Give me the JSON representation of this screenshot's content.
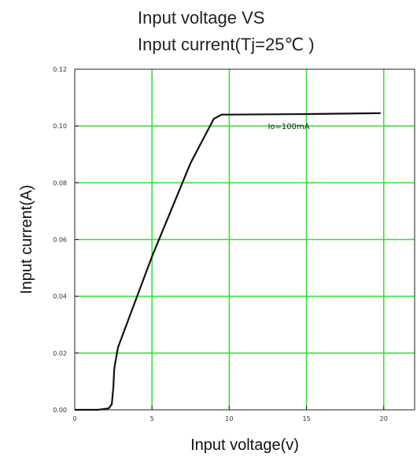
{
  "chart_data": {
    "type": "line",
    "title_line1": "Input voltage VS",
    "title_line2": "Input current(Tj=25℃ )",
    "xlabel": "Input voltage(v)",
    "ylabel": "Input current(A)",
    "xlim": [
      0,
      22
    ],
    "ylim": [
      0,
      0.12
    ],
    "x_ticks": [
      "0",
      "5",
      "10",
      "15",
      "20"
    ],
    "x_tick_values": [
      0,
      5,
      10,
      15,
      20
    ],
    "y_ticks": [
      "0.00",
      "0.02",
      "0.04",
      "0.06",
      "0.08",
      "0.10",
      "0.12"
    ],
    "y_tick_values": [
      0,
      0.02,
      0.04,
      0.06,
      0.08,
      0.1,
      0.12
    ],
    "grid": true,
    "grid_color": "#33dd33",
    "line_color": "#111111",
    "annotation": "Io=100mA",
    "series": [
      {
        "x": [
          0,
          1.5,
          2.2,
          2.4,
          2.5,
          2.55,
          2.6,
          2.8,
          5.0,
          7.5,
          9.0,
          9.5,
          10.0,
          15.0,
          19.8
        ],
        "y": [
          0,
          0,
          0.0005,
          0.002,
          0.008,
          0.014,
          0.016,
          0.022,
          0.054,
          0.087,
          0.1025,
          0.104,
          0.104,
          0.1042,
          0.1045
        ]
      }
    ]
  }
}
